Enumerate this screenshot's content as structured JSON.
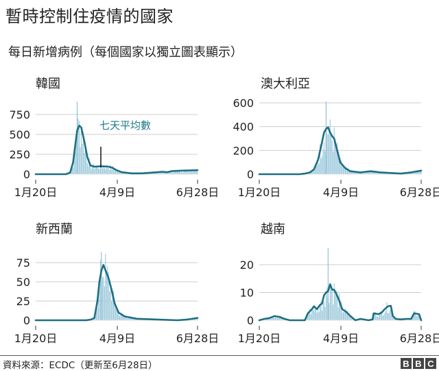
{
  "title": "暫時控制住疫情的國家",
  "subtitle": "每日新增病例（每個國家以獨立圖表顯示）",
  "footer": {
    "source": "資料來源：ECDC（更新至6月28日）",
    "logo": [
      "B",
      "B",
      "C"
    ]
  },
  "colors": {
    "line": "#1d6f82",
    "bars": "#9dc9dc",
    "grid": "#cccccc",
    "annotation": "#1d7a8c",
    "text": "#222222"
  },
  "chart_data": [
    {
      "type": "bar+line",
      "title": "韓國",
      "x_ticks": [
        "1月20日",
        "4月9日",
        "6月28日"
      ],
      "y_ticks": [
        0,
        250,
        500,
        750
      ],
      "ylim": [
        0,
        900
      ],
      "annotation": "七天平均數",
      "grid": true,
      "series": [
        {
          "name": "每日新增病例",
          "kind": "bar",
          "peak": 909,
          "peak_date": "2月29日"
        },
        {
          "name": "七天平均數",
          "kind": "line",
          "points": [
            [
              0,
              0
            ],
            [
              30,
              0
            ],
            [
              34,
              20
            ],
            [
              37,
              150
            ],
            [
              39,
              350
            ],
            [
              41,
              550
            ],
            [
              43,
              610
            ],
            [
              45,
              590
            ],
            [
              48,
              420
            ],
            [
              51,
              220
            ],
            [
              54,
              110
            ],
            [
              58,
              95
            ],
            [
              65,
              100
            ],
            [
              72,
              95
            ],
            [
              76,
              80
            ],
            [
              80,
              50
            ],
            [
              85,
              25
            ],
            [
              95,
              10
            ],
            [
              105,
              10
            ],
            [
              115,
              20
            ],
            [
              125,
              30
            ],
            [
              130,
              25
            ],
            [
              135,
              40
            ],
            [
              145,
              45
            ],
            [
              160,
              50
            ]
          ]
        }
      ]
    },
    {
      "type": "bar+line",
      "title": "澳大利亞",
      "x_ticks": [
        "1月20日",
        "4月9日",
        "6月28日"
      ],
      "y_ticks": [
        0,
        200,
        400,
        600
      ],
      "ylim": [
        0,
        620
      ],
      "grid": true,
      "series": [
        {
          "name": "每日新增病例",
          "kind": "bar",
          "peak": 611,
          "peak_date": "3月28日"
        },
        {
          "name": "七天平均數",
          "kind": "line",
          "points": [
            [
              0,
              0
            ],
            [
              40,
              0
            ],
            [
              45,
              5
            ],
            [
              50,
              15
            ],
            [
              54,
              40
            ],
            [
              58,
              120
            ],
            [
              61,
              230
            ],
            [
              64,
              350
            ],
            [
              66,
              380
            ],
            [
              68,
              395
            ],
            [
              70,
              350
            ],
            [
              72,
              320
            ],
            [
              74,
              300
            ],
            [
              77,
              200
            ],
            [
              80,
              100
            ],
            [
              85,
              50
            ],
            [
              90,
              25
            ],
            [
              100,
              15
            ],
            [
              105,
              20
            ],
            [
              110,
              25
            ],
            [
              120,
              15
            ],
            [
              130,
              10
            ],
            [
              140,
              5
            ],
            [
              150,
              15
            ],
            [
              160,
              30
            ]
          ]
        }
      ]
    },
    {
      "type": "bar+line",
      "title": "新西蘭",
      "x_ticks": [
        "1月20日",
        "4月9日",
        "6月28日"
      ],
      "y_ticks": [
        0,
        25,
        50,
        75
      ],
      "ylim": [
        0,
        95
      ],
      "grid": true,
      "series": [
        {
          "name": "每日新增病例",
          "kind": "bar",
          "peak": 89,
          "peak_date": "4月5日"
        },
        {
          "name": "七天平均數",
          "kind": "line",
          "points": [
            [
              0,
              0
            ],
            [
              50,
              0
            ],
            [
              55,
              1
            ],
            [
              58,
              3
            ],
            [
              61,
              25
            ],
            [
              63,
              50
            ],
            [
              65,
              65
            ],
            [
              67,
              72
            ],
            [
              69,
              65
            ],
            [
              72,
              55
            ],
            [
              75,
              40
            ],
            [
              78,
              22
            ],
            [
              82,
              10
            ],
            [
              88,
              5
            ],
            [
              100,
              2
            ],
            [
              120,
              1
            ],
            [
              140,
              0
            ],
            [
              150,
              1
            ],
            [
              160,
              3
            ]
          ]
        }
      ]
    },
    {
      "type": "bar+line",
      "title": "越南",
      "x_ticks": [
        "1月20日",
        "4月9日",
        "6月28日"
      ],
      "y_ticks": [
        0,
        10,
        20
      ],
      "ylim": [
        0,
        27
      ],
      "grid": true,
      "series": [
        {
          "name": "每日新增病例",
          "kind": "bar",
          "peak": 26,
          "peak_date": "3月22日"
        },
        {
          "name": "七天平均數",
          "kind": "line",
          "points": [
            [
              0,
              0
            ],
            [
              5,
              0.5
            ],
            [
              10,
              0.8
            ],
            [
              15,
              1.5
            ],
            [
              20,
              1.2
            ],
            [
              25,
              0.5
            ],
            [
              30,
              0
            ],
            [
              45,
              0
            ],
            [
              48,
              2.5
            ],
            [
              52,
              4
            ],
            [
              54,
              5
            ],
            [
              57,
              4
            ],
            [
              60,
              5.5
            ],
            [
              62,
              6
            ],
            [
              64,
              9
            ],
            [
              66,
              10
            ],
            [
              68,
              10.5
            ],
            [
              70,
              13
            ],
            [
              72,
              11
            ],
            [
              74,
              11
            ],
            [
              78,
              8
            ],
            [
              80,
              6
            ],
            [
              82,
              4
            ],
            [
              86,
              3
            ],
            [
              90,
              1.5
            ],
            [
              95,
              0
            ],
            [
              100,
              0.5
            ],
            [
              108,
              0
            ],
            [
              112,
              0.3
            ],
            [
              113,
              2.5
            ],
            [
              118,
              2.2
            ],
            [
              121,
              2.8
            ],
            [
              124,
              4
            ],
            [
              127,
              5
            ],
            [
              130,
              5.2
            ],
            [
              132,
              1.5
            ],
            [
              135,
              0.5
            ],
            [
              140,
              0.3
            ],
            [
              145,
              0.5
            ],
            [
              150,
              0.5
            ],
            [
              153,
              2.5
            ],
            [
              158,
              2.2
            ],
            [
              160,
              0
            ]
          ]
        }
      ]
    }
  ]
}
